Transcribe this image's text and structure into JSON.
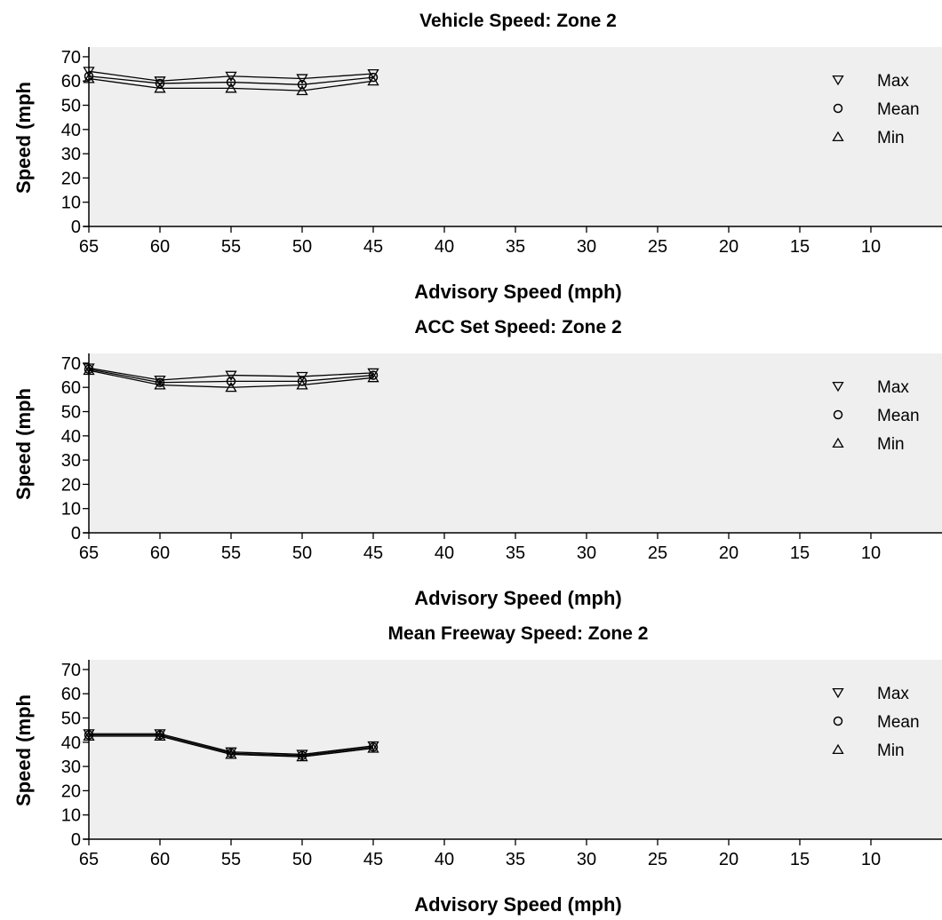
{
  "chart_data": [
    {
      "type": "line",
      "title": "Vehicle Speed: Zone 2",
      "xlabel": "Advisory Speed (mph)",
      "ylabel": "Speed (mph",
      "x_ticks": [
        "65",
        "60",
        "55",
        "50",
        "45",
        "40",
        "35",
        "30",
        "25",
        "20",
        "15",
        "10"
      ],
      "y_ticks": [
        "0",
        "10",
        "20",
        "30",
        "40",
        "50",
        "60",
        "70"
      ],
      "xlim": [
        65,
        5
      ],
      "ylim": [
        0,
        74
      ],
      "x": [
        65,
        60,
        55,
        50,
        45
      ],
      "series": [
        {
          "name": "Max",
          "marker": "triangle-down",
          "values": [
            64,
            60,
            62,
            61,
            63
          ]
        },
        {
          "name": "Mean",
          "marker": "circle",
          "values": [
            62,
            59,
            59.5,
            58.5,
            61.5
          ]
        },
        {
          "name": "Min",
          "marker": "triangle-up",
          "values": [
            61,
            57,
            57,
            56,
            60
          ]
        }
      ],
      "legend": "top-right",
      "grid": false
    },
    {
      "type": "line",
      "title": "ACC Set Speed: Zone 2",
      "xlabel": "Advisory Speed (mph)",
      "ylabel": "Speed (mph",
      "x_ticks": [
        "65",
        "60",
        "55",
        "50",
        "45",
        "40",
        "35",
        "30",
        "25",
        "20",
        "15",
        "10"
      ],
      "y_ticks": [
        "0",
        "10",
        "20",
        "30",
        "40",
        "50",
        "60",
        "70"
      ],
      "xlim": [
        65,
        5
      ],
      "ylim": [
        0,
        74
      ],
      "x": [
        65,
        60,
        55,
        50,
        45
      ],
      "series": [
        {
          "name": "Max",
          "marker": "triangle-down",
          "values": [
            68,
            63,
            65,
            64.5,
            66
          ]
        },
        {
          "name": "Mean",
          "marker": "circle",
          "values": [
            67.5,
            62,
            62.5,
            62.5,
            65
          ]
        },
        {
          "name": "Min",
          "marker": "triangle-up",
          "values": [
            67,
            61,
            60,
            61,
            64
          ]
        }
      ],
      "legend": "top-right",
      "grid": false
    },
    {
      "type": "line",
      "title": "Mean Freeway Speed: Zone 2",
      "xlabel": "Advisory Speed (mph)",
      "ylabel": "Speed (mph",
      "x_ticks": [
        "65",
        "60",
        "55",
        "50",
        "45",
        "40",
        "35",
        "30",
        "25",
        "20",
        "15",
        "10"
      ],
      "y_ticks": [
        "0",
        "10",
        "20",
        "30",
        "40",
        "50",
        "60",
        "70"
      ],
      "xlim": [
        65,
        5
      ],
      "ylim": [
        0,
        74
      ],
      "x": [
        65,
        60,
        55,
        50,
        45
      ],
      "series": [
        {
          "name": "Max",
          "marker": "triangle-down",
          "values": [
            43.5,
            43.5,
            36,
            35,
            38.5
          ]
        },
        {
          "name": "Mean",
          "marker": "circle",
          "values": [
            43,
            43,
            35.5,
            34.5,
            38
          ]
        },
        {
          "name": "Min",
          "marker": "triangle-up",
          "values": [
            42.5,
            42.5,
            35,
            34,
            37.5
          ]
        }
      ],
      "legend": "top-right",
      "grid": false
    }
  ],
  "colors": {
    "plot_background": "#efefef",
    "line": "#000000",
    "axis": "#000000"
  }
}
